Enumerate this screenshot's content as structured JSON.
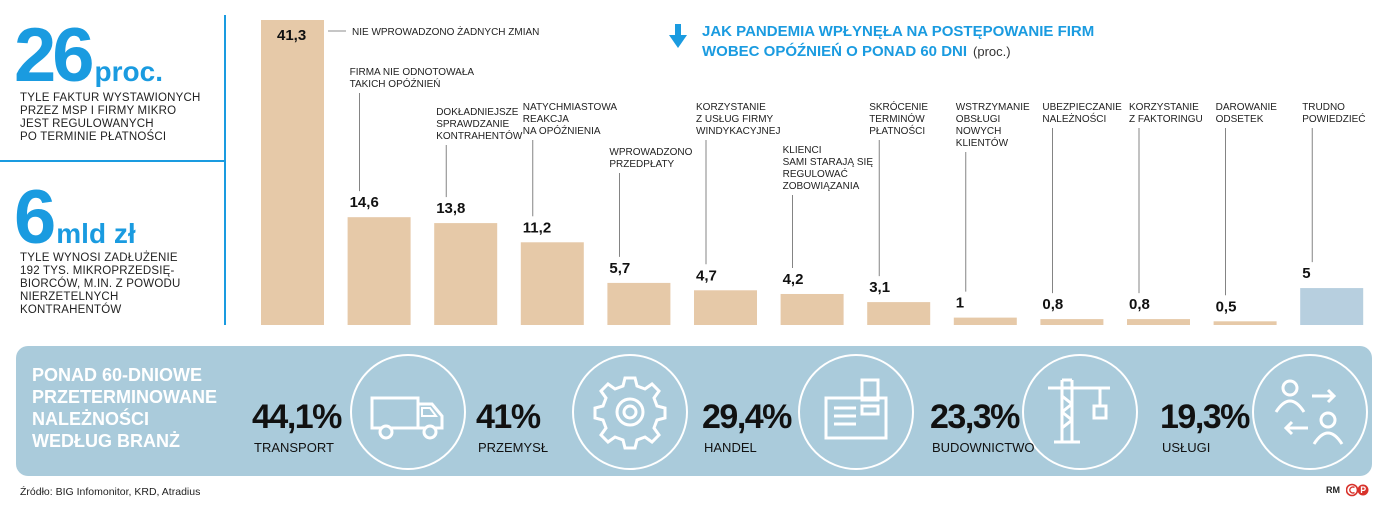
{
  "left_stats": [
    {
      "value": "26",
      "unit": "proc.",
      "description": [
        "TYLE FAKTUR WYSTAWIONYCH",
        "PRZEZ MSP I FIRMY MIKRO",
        "JEST REGULOWANYCH",
        "PO TERMINIE PŁATNOŚCI"
      ]
    },
    {
      "value": "6",
      "unit": "mld zł",
      "description": [
        "TYLE WYNOSI ZADŁUŻENIE",
        "192 TYS. MIKROPRZEDSIĘ-",
        "BIORCÓW, M.IN. Z POWODU",
        "NIERZETELNYCH",
        "KONTRAHENTÓW"
      ]
    }
  ],
  "chart_data": {
    "type": "bar",
    "title": "JAK PANDEMIA WPŁYNĘŁA NA POSTĘPOWANIE FIRM WOBEC OPÓŹNIEŃ O PONAD 60 DNI",
    "title_lines": [
      "JAK PANDEMIA WPŁYNĘŁA NA POSTĘPOWANIE FIRM",
      "WOBEC OPÓŹNIEŃ O PONAD 60 DNI"
    ],
    "unit": "(proc.)",
    "categories": [
      "NIE WPROWADZONO ŻADNYCH ZMIAN",
      "FIRMA NIE ODNOTOWAŁA TAKICH OPÓŹNIEŃ",
      "DOKŁADNIEJSZE SPRAWDZANIE KONTRAHENTÓW",
      "NATYCHMIASTOWA REAKCJA NA OPÓŹNIENIA",
      "WPROWADZONO PRZEDPŁATY",
      "KORZYSTANIE Z USŁUG FIRMY WINDYKACYJNEJ",
      "KLIENCI SAMI STARAJĄ SIĘ REGULOWAĆ ZOBOWIĄZANIA",
      "SKRÓCENIE TERMINÓW PŁATNOŚCI",
      "WSTRZYMANIE OBSŁUGI NOWYCH KLIENTÓW",
      "UBEZPIECZANIE NALEŻNOŚCI",
      "KORZYSTANIE Z FAKTORINGU",
      "DAROWANIE ODSETEK",
      "TRUDNO POWIEDZIEĆ"
    ],
    "category_lines": [
      [
        "NIE WPROWADZONO ŻADNYCH ZMIAN"
      ],
      [
        "FIRMA NIE ODNOTOWAŁA",
        "TAKICH OPÓŹNIEŃ"
      ],
      [
        "DOKŁADNIEJSZE",
        "SPRAWDZANIE",
        "KONTRAHENTÓW"
      ],
      [
        "NATYCHMIASTOWA",
        "REAKCJA",
        "NA OPÓŹNIENIA"
      ],
      [
        "WPROWADZONO",
        "PRZEDPŁATY"
      ],
      [
        "KORZYSTANIE",
        "Z USŁUG FIRMY",
        "WINDYKACYJNEJ"
      ],
      [
        "KLIENCI",
        "SAMI STARAJĄ SIĘ",
        "REGULOWAĆ",
        "ZOBOWIĄZANIA"
      ],
      [
        "SKRÓCENIE",
        "TERMINÓW",
        "PŁATNOŚCI"
      ],
      [
        "WSTRZYMANIE",
        "OBSŁUGI",
        "NOWYCH",
        "KLIENTÓW"
      ],
      [
        "UBEZPIECZANIE",
        "NALEŻNOŚCI"
      ],
      [
        "KORZYSTANIE",
        "Z FAKTORINGU"
      ],
      [
        "DAROWANIE",
        "ODSETEK"
      ],
      [
        "TRUDNO",
        "POWIEDZIEĆ"
      ]
    ],
    "values": [
      41.3,
      14.6,
      13.8,
      11.2,
      5.7,
      4.7,
      4.2,
      3.1,
      1,
      0.8,
      0.8,
      0.5,
      5
    ],
    "value_labels": [
      "41,3",
      "14,6",
      "13,8",
      "11,2",
      "5,7",
      "4,7",
      "4,2",
      "3,1",
      "1",
      "0,8",
      "0,8",
      "0,5",
      "5"
    ],
    "ylim": [
      0,
      41.3
    ],
    "grid": false,
    "bar_color": "#e6c9a8",
    "highlight_bar_color": "#b7cfdf",
    "highlight_index": 12
  },
  "sectors_panel": {
    "title_lines": [
      "PONAD 60-DNIOWE",
      "PRZETERMINOWANE",
      "NALEŻNOŚCI",
      "WEDŁUG BRANŻ"
    ],
    "items": [
      {
        "percent": "44,1%",
        "label": "TRANSPORT",
        "icon": "van-icon"
      },
      {
        "percent": "41%",
        "label": "PRZEMYSŁ",
        "icon": "gear-icon"
      },
      {
        "percent": "29,4%",
        "label": "HANDEL",
        "icon": "cash-register-icon"
      },
      {
        "percent": "23,3%",
        "label": "BUDOWNICTWO",
        "icon": "crane-icon"
      },
      {
        "percent": "19,3%",
        "label": "USŁUGI",
        "icon": "people-exchange-icon"
      }
    ]
  },
  "footer": {
    "source": "Źródło: BIG Infomonitor, KRD, Atradius",
    "credit": "RM"
  },
  "colors": {
    "accent": "#1a9be0",
    "panel": "#aacbdb",
    "bar": "#e6c9a8"
  }
}
